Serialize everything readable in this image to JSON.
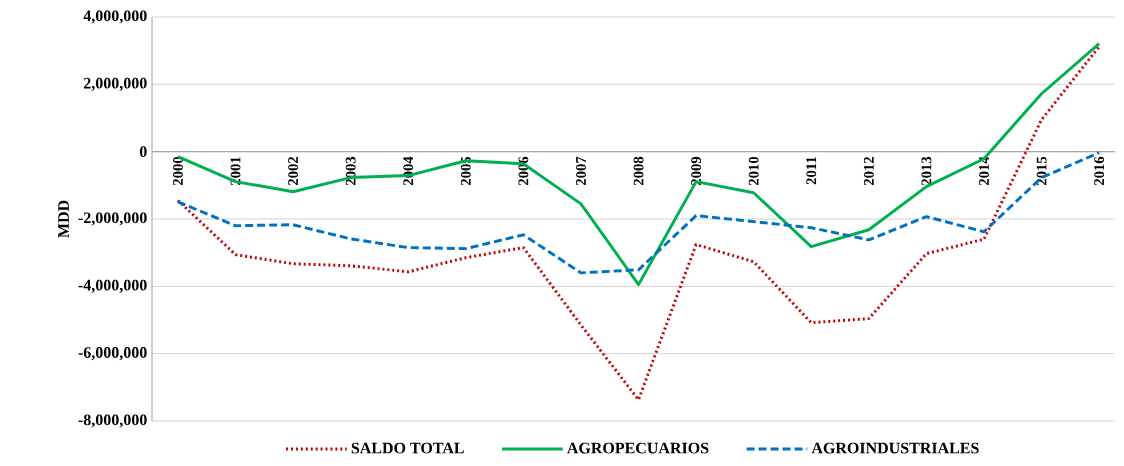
{
  "chart_data": {
    "type": "line",
    "ylabel": "MDD",
    "categories": [
      "2000",
      "2001",
      "2002",
      "2003",
      "2004",
      "2005",
      "2006",
      "2007",
      "2008",
      "2009",
      "2010",
      "2011",
      "2012",
      "2013",
      "2014",
      "2015",
      "2016"
    ],
    "series": [
      {
        "name": "SALDO TOTAL",
        "color": "#c00000",
        "line_style": "dotted",
        "values": [
          -1450000,
          -3060000,
          -3330000,
          -3390000,
          -3570000,
          -3150000,
          -2850000,
          -5150000,
          -7370000,
          -2760000,
          -3270000,
          -5080000,
          -4960000,
          -3030000,
          -2600000,
          950000,
          3120000
        ]
      },
      {
        "name": "AGROPECUARIOS",
        "color": "#00b050",
        "line_style": "solid",
        "values": [
          -150000,
          -890000,
          -1190000,
          -770000,
          -710000,
          -270000,
          -360000,
          -1550000,
          -3950000,
          -890000,
          -1220000,
          -2820000,
          -2320000,
          -1040000,
          -210000,
          1720000,
          3210000
        ]
      },
      {
        "name": "AGROINDUSTRIALES",
        "color": "#0070c0",
        "line_style": "dashed",
        "values": [
          -1490000,
          -2200000,
          -2170000,
          -2590000,
          -2850000,
          -2880000,
          -2470000,
          -3600000,
          -3510000,
          -1900000,
          -2080000,
          -2260000,
          -2620000,
          -1930000,
          -2380000,
          -770000,
          -30000
        ]
      }
    ],
    "ylim": [
      -8000000,
      4000000
    ],
    "yticks": [
      {
        "value": -8000000,
        "label": "-8,000,000"
      },
      {
        "value": -6000000,
        "label": "-6,000,000"
      },
      {
        "value": -4000000,
        "label": "-4,000,000"
      },
      {
        "value": -2000000,
        "label": "-2,000,000"
      },
      {
        "value": 0,
        "label": "0"
      },
      {
        "value": 2000000,
        "label": "2,000,000"
      },
      {
        "value": 4000000,
        "label": "4,000,000"
      }
    ],
    "grid": "y",
    "legend": "bottom"
  }
}
